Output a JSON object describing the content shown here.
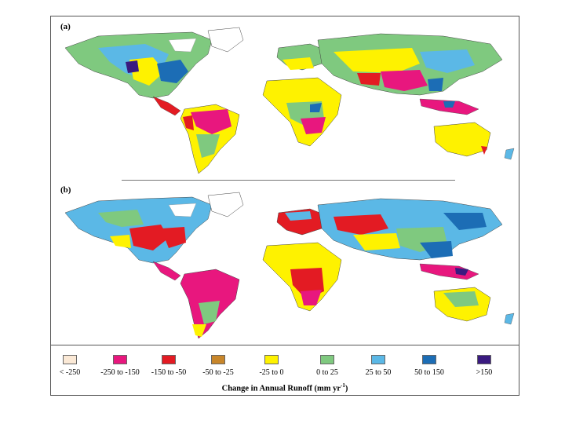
{
  "panels": [
    {
      "label": "(a)"
    },
    {
      "label": "(b)"
    }
  ],
  "legend": {
    "title_main": "Change in Annual Runoff (mm yr",
    "title_sup": "-1",
    "title_close": ")",
    "items": [
      {
        "label": "< -250",
        "color": "#fbe9d6"
      },
      {
        "label": "-250 to -150",
        "color": "#e8177e"
      },
      {
        "label": "-150 to -50",
        "color": "#e31b23"
      },
      {
        "label": "-50 to -25",
        "color": "#c8862a"
      },
      {
        "label": "-25 to 0",
        "color": "#fef200"
      },
      {
        "label": "0 to 25",
        "color": "#7fc97f"
      },
      {
        "label": "25 to 50",
        "color": "#5bb8e6"
      },
      {
        "label": "50 to 150",
        "color": "#1c6db5"
      },
      {
        "label": ">150",
        "color": "#3a1a80"
      }
    ]
  }
}
